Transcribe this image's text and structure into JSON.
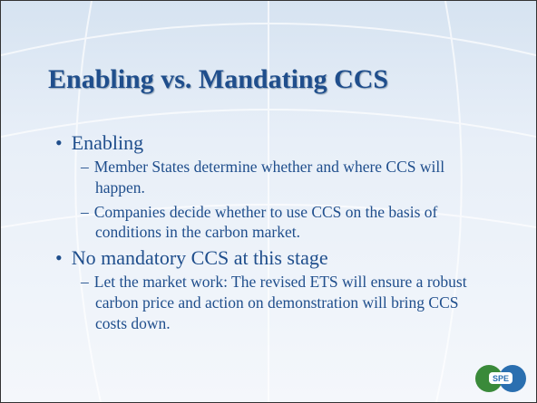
{
  "title": "Enabling vs. Mandating CCS",
  "bullets": [
    {
      "text": "Enabling",
      "subs": [
        "Member States determine whether and where CCS will happen.",
        "Companies decide whether to use CCS on the basis of conditions in the carbon market."
      ]
    },
    {
      "text": "No mandatory CCS at this stage",
      "subs": [
        "Let the market work:  The revised ETS will ensure a robust carbon price and action on demonstration will bring CCS costs down."
      ]
    }
  ],
  "logo": "SPE"
}
